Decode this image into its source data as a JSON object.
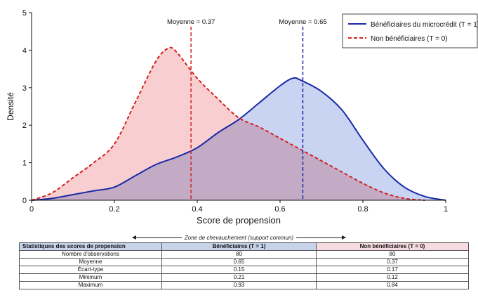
{
  "chart_data": {
    "type": "area",
    "xlabel": "Score de propension",
    "ylabel": "Densité",
    "xlim": [
      0,
      1
    ],
    "ylim": [
      0,
      5
    ],
    "xticks": [
      "0",
      "0.2",
      "0.4",
      "0.6",
      "0.8",
      "1"
    ],
    "yticks": [
      "0",
      "1",
      "2",
      "3",
      "4",
      "5"
    ],
    "legend_position": "top-right",
    "series": [
      {
        "name": "Bénéficiaires du microcrédit (T = 1)",
        "color": "#1a2aa6",
        "fill": "#b7c6ee",
        "line_style": "solid",
        "x": [
          0,
          0.05,
          0.1,
          0.15,
          0.2,
          0.25,
          0.3,
          0.35,
          0.4,
          0.45,
          0.5,
          0.55,
          0.6,
          0.63,
          0.65,
          0.7,
          0.75,
          0.8,
          0.85,
          0.9,
          0.95,
          1.0
        ],
        "y": [
          0.0,
          0.05,
          0.15,
          0.25,
          0.35,
          0.65,
          0.95,
          1.15,
          1.4,
          1.8,
          2.15,
          2.6,
          3.05,
          3.25,
          3.2,
          2.9,
          2.4,
          1.6,
          0.85,
          0.35,
          0.1,
          0.0
        ]
      },
      {
        "name": "Non bénéficiaires (T = 0)",
        "color": "#d42020",
        "fill": "#f7c6c9",
        "line_style": "dashed",
        "x": [
          0,
          0.05,
          0.1,
          0.15,
          0.2,
          0.25,
          0.3,
          0.33,
          0.35,
          0.4,
          0.45,
          0.5,
          0.55,
          0.6,
          0.65,
          0.7,
          0.75,
          0.8,
          0.85,
          0.9,
          0.95
        ],
        "y": [
          0.0,
          0.2,
          0.6,
          1.0,
          1.5,
          2.6,
          3.7,
          4.05,
          3.95,
          3.25,
          2.7,
          2.2,
          1.95,
          1.65,
          1.35,
          1.05,
          0.75,
          0.45,
          0.2,
          0.05,
          0.0
        ]
      }
    ],
    "annotations": [
      {
        "text": "Moyenne = 0.37",
        "x": 0.385,
        "color": "#d42020",
        "style": "dashed"
      },
      {
        "text": "Moyenne = 0.65",
        "x": 0.655,
        "color": "#1a2aa6",
        "style": "dashed"
      }
    ]
  },
  "overlap_note": "Zone de chevauchement (support commun)",
  "table": {
    "headers": [
      "Statistiques des scores de propension",
      "Bénéficiaires (T = 1)",
      "Non bénéficiaires (T = 0)"
    ],
    "rows": [
      [
        "Nombre d'observations",
        "80",
        "80"
      ],
      [
        "Moyenne",
        "0.65",
        "0.37"
      ],
      [
        "Écart-type",
        "0.15",
        "0.17"
      ],
      [
        "Minimum",
        "0.21",
        "0.12"
      ],
      [
        "Maximum",
        "0.93",
        "0.84"
      ]
    ]
  }
}
